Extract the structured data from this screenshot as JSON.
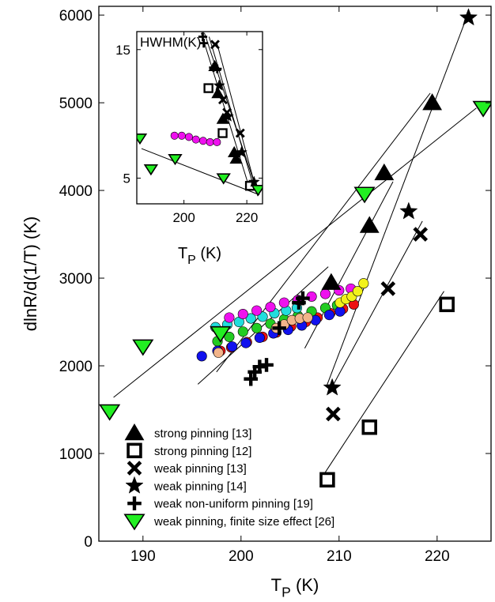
{
  "chart_data": [
    {
      "type": "scatter",
      "title": "",
      "xlabel": "T",
      "xlabel_sub": "P",
      "xlabel_unit": " (K)",
      "ylabel": "dlnR/d(1/T)  (K)",
      "xlim": [
        185.5,
        225.5
      ],
      "ylim": [
        0,
        6100
      ],
      "xticks": [
        190,
        200,
        210,
        220
      ],
      "yticks": [
        0,
        1000,
        2000,
        3000,
        4000,
        5000,
        6000
      ],
      "grid": false,
      "legend_position": "bottom-left",
      "series": [
        {
          "name": "strong pinning [13]",
          "marker": "triangle",
          "color": "#000000",
          "x": [
            209.2,
            213.1,
            214.6,
            219.5
          ],
          "y": [
            2950,
            3600,
            4200,
            5000
          ]
        },
        {
          "name": "strong pinning [12]",
          "marker": "square-open",
          "color": "#000000",
          "x": [
            208.8,
            213.1,
            221.0
          ],
          "y": [
            700,
            1300,
            2700
          ]
        },
        {
          "name": "weak pinning   [13]",
          "marker": "x",
          "color": "#000000",
          "x": [
            209.4,
            215.0,
            218.3
          ],
          "y": [
            1450,
            2880,
            3500
          ]
        },
        {
          "name": "weak pinning   [14]",
          "marker": "star",
          "color": "#000000",
          "x": [
            209.3,
            217.1,
            223.2
          ],
          "y": [
            1750,
            3760,
            5970
          ]
        },
        {
          "name": "weak non-uniform pinning [19]",
          "marker": "plus",
          "color": "#000000",
          "x": [
            201.0,
            201.4,
            201.9,
            202.6,
            203.9,
            205.9,
            206.3
          ],
          "y": [
            1850,
            1930,
            1990,
            2010,
            2430,
            2720,
            2770
          ]
        },
        {
          "name": "weak pinning, finite size effect [26]",
          "marker": "triangle-down",
          "color": "#22ee22",
          "x": [
            186.6,
            190.0,
            197.9,
            212.6,
            224.7
          ],
          "y": [
            1480,
            2220,
            2370,
            3960,
            4940
          ]
        }
      ],
      "unlabeled_series": [
        {
          "marker": "circle",
          "color": "#ee1111",
          "x": [
            197.9,
            199.0,
            200.6,
            202.2,
            203.6,
            205.1,
            206.6,
            207.8,
            209.1,
            210.4,
            211.5
          ],
          "y": [
            2170,
            2210,
            2270,
            2330,
            2380,
            2450,
            2500,
            2550,
            2600,
            2650,
            2700
          ]
        },
        {
          "marker": "circle",
          "color": "#22cc22",
          "x": [
            197.6,
            198.8,
            200.2,
            201.6,
            203.0,
            204.4,
            205.8,
            207.2,
            208.6,
            209.8
          ],
          "y": [
            2280,
            2330,
            2390,
            2430,
            2480,
            2530,
            2570,
            2620,
            2660,
            2690
          ]
        },
        {
          "marker": "circle",
          "color": "#1111ee",
          "x": [
            196.0,
            197.6,
            199.1,
            200.5,
            201.9,
            203.3,
            204.8,
            206.2,
            207.6,
            209.0,
            210.1
          ],
          "y": [
            2110,
            2170,
            2220,
            2260,
            2320,
            2370,
            2410,
            2460,
            2520,
            2580,
            2620
          ]
        },
        {
          "marker": "circle",
          "color": "#22dddd",
          "x": [
            197.4,
            198.6,
            199.8,
            201.0,
            202.2,
            203.4,
            204.6,
            205.7
          ],
          "y": [
            2440,
            2470,
            2500,
            2540,
            2560,
            2600,
            2630,
            2660
          ]
        },
        {
          "marker": "circle",
          "color": "#ee11ee",
          "x": [
            198.8,
            200.2,
            201.6,
            203.0,
            204.4,
            205.8,
            207.2,
            208.6,
            210.0,
            211.2
          ],
          "y": [
            2550,
            2590,
            2630,
            2670,
            2720,
            2750,
            2790,
            2820,
            2860,
            2880
          ]
        },
        {
          "marker": "circle",
          "color": "#f2b48a",
          "x": [
            197.7,
            203.6,
            204.4,
            205.2,
            206.0,
            206.8
          ],
          "y": [
            2150,
            2430,
            2470,
            2520,
            2540,
            2550
          ]
        },
        {
          "marker": "circle",
          "color": "#f2f21a",
          "x": [
            210.1,
            210.7,
            211.3,
            211.9,
            212.5
          ],
          "y": [
            2720,
            2760,
            2790,
            2850,
            2940
          ]
        }
      ],
      "fit_lines": [
        {
          "x": [
            187.0,
            224.0
          ],
          "y": [
            1640,
            4940
          ]
        },
        {
          "x": [
            197.5,
            219.3
          ],
          "y": [
            1930,
            5110
          ]
        },
        {
          "x": [
            208.7,
            223.1
          ],
          "y": [
            1760,
            6000
          ]
        },
        {
          "x": [
            209.0,
            218.5
          ],
          "y": [
            1700,
            3650
          ]
        },
        {
          "x": [
            208.5,
            220.7
          ],
          "y": [
            770,
            2850
          ]
        },
        {
          "x": [
            195.6,
            208.9
          ],
          "y": [
            1790,
            3130
          ]
        },
        {
          "x": [
            206.5,
            215.5
          ],
          "y": [
            2200,
            4100
          ]
        }
      ],
      "data_name": "main-chart"
    },
    {
      "type": "scatter",
      "title": "HWHM(K)",
      "xlabel": "T",
      "xlabel_sub": "P",
      "xlabel_unit": " (K)",
      "xlim": [
        185,
        225
      ],
      "ylim": [
        3,
        16.4
      ],
      "xticks": [
        200,
        220
      ],
      "yticks": [
        5,
        15
      ],
      "grid": false,
      "series": [
        {
          "name": "strong pinning [13]",
          "marker": "triangle",
          "color": "#000000",
          "x": [
            209.8,
            210.8,
            212.4,
            216.0,
            216.6
          ],
          "y": [
            13.7,
            11.6,
            9.6,
            7.0,
            6.5
          ]
        },
        {
          "name": "strong pinning [12]",
          "marker": "square-open",
          "color": "#000000",
          "x": [
            207.8,
            212.3,
            221.0
          ],
          "y": [
            12.0,
            8.5,
            4.4
          ]
        },
        {
          "name": "weak pinning   [13]",
          "marker": "x",
          "color": "#000000",
          "x": [
            209.9,
            212.4,
            213.7,
            217.9
          ],
          "y": [
            15.4,
            11.1,
            10.1,
            8.5
          ]
        },
        {
          "name": "weak pinning   [14]",
          "marker": "star",
          "color": "#000000",
          "x": [
            211.2,
            214.0,
            218.3,
            222.3
          ],
          "y": [
            12.2,
            9.8,
            7.0,
            4.7
          ]
        },
        {
          "name": "weak non-uniform pinning [19]",
          "marker": "plus",
          "color": "#000000",
          "x": [
            206.0,
            206.3,
            209.4,
            210.6
          ],
          "y": [
            16.0,
            15.5,
            13.6,
            13.5
          ]
        },
        {
          "name": "weak pinning, finite size effect [26]",
          "marker": "triangle-down",
          "color": "#22ee22",
          "x": [
            186.0,
            189.5,
            197.2,
            212.6,
            223.6
          ],
          "y": [
            8.1,
            5.7,
            6.5,
            5.0,
            4.1
          ]
        }
      ],
      "unlabeled_series": [
        {
          "marker": "circle",
          "color": "#ee11ee",
          "x": [
            197.0,
            199.3,
            201.6,
            203.8,
            206.1,
            208.3,
            210.5
          ],
          "y": [
            8.3,
            8.3,
            8.2,
            8.0,
            7.9,
            7.8,
            7.8
          ]
        }
      ],
      "fit_lines": [
        {
          "x": [
            186.5,
            224.0
          ],
          "y": [
            7.3,
            3.7
          ]
        },
        {
          "x": [
            205.5,
            221.0
          ],
          "y": [
            16.3,
            4.1
          ]
        },
        {
          "x": [
            206.5,
            223.5
          ],
          "y": [
            16.3,
            3.8
          ]
        },
        {
          "x": [
            208.0,
            222.0
          ],
          "y": [
            16.0,
            4.5
          ]
        },
        {
          "x": [
            210.5,
            223.5
          ],
          "y": [
            15.5,
            3.6
          ]
        },
        {
          "x": [
            196.0,
            211.5
          ],
          "y": [
            8.5,
            7.6
          ]
        }
      ],
      "data_name": "inset-chart"
    }
  ]
}
